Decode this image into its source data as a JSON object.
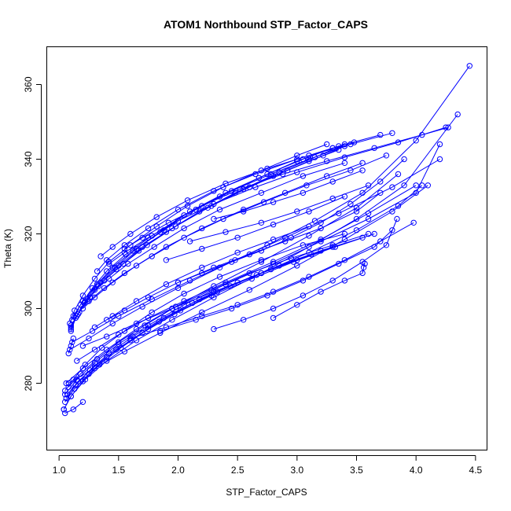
{
  "chart_data": {
    "type": "line",
    "title": "ATOM1 Northbound STP_Factor_CAPS",
    "xlabel": "STP_Factor_CAPS",
    "ylabel": "Theta (K)",
    "xlim": [
      0.9,
      4.6
    ],
    "ylim": [
      262,
      370
    ],
    "xticks": [
      1.0,
      1.5,
      2.0,
      2.5,
      3.0,
      3.5,
      4.0,
      4.5
    ],
    "xtick_labels": [
      "1.0",
      "1.5",
      "2.0",
      "2.5",
      "3.0",
      "3.5",
      "4.0",
      "4.5"
    ],
    "yticks": [
      280,
      300,
      320,
      340,
      360
    ],
    "ytick_labels": [
      "280",
      "300",
      "320",
      "340",
      "360"
    ],
    "grid": false,
    "color": "#0000ff",
    "series": [
      {
        "x": [
          1.1,
          1.15,
          1.22,
          1.32,
          1.45,
          1.62,
          1.85,
          2.1,
          2.4,
          2.75,
          3.05,
          3.3
        ],
        "y": [
          294.5,
          298,
          302,
          306.5,
          311,
          315.5,
          320.5,
          326,
          331,
          336,
          340,
          343
        ]
      },
      {
        "x": [
          1.09,
          1.13,
          1.2,
          1.3,
          1.42,
          1.6,
          1.82,
          2.08,
          2.38,
          2.7,
          3.0,
          3.25
        ],
        "y": [
          296,
          299.5,
          303.5,
          308,
          312.5,
          317,
          322,
          327.5,
          332.5,
          337,
          341,
          344
        ]
      },
      {
        "x": [
          1.1,
          1.16,
          1.24,
          1.35,
          1.5,
          1.7,
          1.95,
          2.25,
          2.55,
          2.85,
          3.15,
          3.4
        ],
        "y": [
          295,
          298.5,
          302.5,
          307,
          311.5,
          316.5,
          321.5,
          327,
          332,
          336.5,
          340.5,
          344
        ]
      },
      {
        "x": [
          1.11,
          1.18,
          1.28,
          1.4,
          1.56,
          1.78,
          2.05,
          2.35,
          2.68,
          3.0,
          3.3
        ],
        "y": [
          297,
          301,
          305.5,
          310,
          314.5,
          319.5,
          325,
          330,
          335,
          339.5,
          343
        ]
      },
      {
        "x": [
          1.1,
          1.14,
          1.21,
          1.33,
          1.48,
          1.67,
          1.9,
          2.18,
          2.48,
          2.8,
          3.1,
          3.35
        ],
        "y": [
          294,
          297.5,
          301.5,
          306,
          310.5,
          315.5,
          320.5,
          326,
          331,
          335.5,
          339.5,
          342.5
        ]
      },
      {
        "x": [
          1.12,
          1.2,
          1.32,
          1.47,
          1.65,
          1.88,
          2.15,
          2.45,
          2.78,
          3.1,
          3.4
        ],
        "y": [
          298,
          302,
          306.5,
          311,
          316,
          321,
          326.5,
          331.5,
          336,
          340,
          343.5
        ]
      },
      {
        "x": [
          1.1,
          1.17,
          1.26,
          1.38,
          1.54,
          1.74,
          1.98,
          2.28,
          2.6,
          2.92,
          3.22,
          3.48
        ],
        "y": [
          295.5,
          299,
          303,
          307.5,
          312,
          317,
          322,
          327.5,
          332.5,
          337,
          341,
          344.5
        ]
      },
      {
        "x": [
          1.32,
          1.4,
          1.55,
          1.75,
          2.0,
          2.3,
          2.65,
          3.0,
          3.35,
          3.7
        ],
        "y": [
          310,
          313,
          317,
          321.5,
          326.5,
          331.5,
          336,
          340,
          343.5,
          346.5
        ]
      },
      {
        "x": [
          1.35,
          1.45,
          1.6,
          1.82,
          2.08,
          2.4,
          2.75,
          3.1,
          3.45,
          3.8
        ],
        "y": [
          314,
          316.5,
          320,
          324.5,
          329,
          333.5,
          337.5,
          341,
          344,
          347
        ]
      },
      {
        "x": [
          1.42,
          1.55,
          1.75,
          2.0,
          2.3,
          2.65,
          3.0,
          3.4,
          3.85,
          4.25
        ],
        "y": [
          312,
          315,
          319,
          323.5,
          328,
          332.5,
          336.5,
          340.5,
          344.5,
          348.5
        ]
      },
      {
        "x": [
          1.55,
          1.7,
          1.92,
          2.2,
          2.52,
          2.88,
          3.25,
          3.65,
          4.05,
          4.27
        ],
        "y": [
          316,
          319,
          323,
          327.5,
          332,
          336,
          339.5,
          343,
          346.5,
          348.5
        ]
      },
      {
        "x": [
          1.3,
          1.42,
          1.58,
          1.8,
          2.05,
          2.35,
          2.7,
          3.05,
          3.4
        ],
        "y": [
          305,
          308,
          312,
          316.5,
          321.5,
          326.5,
          331,
          335.5,
          339
        ]
      },
      {
        "x": [
          1.2,
          1.3,
          1.45,
          1.65,
          1.9,
          2.2,
          2.55,
          2.9,
          3.25,
          3.55
        ],
        "y": [
          300,
          303,
          307,
          311.5,
          316.5,
          321.5,
          326.5,
          331,
          335.5,
          339
        ]
      },
      {
        "x": [
          1.25,
          1.38,
          1.55,
          1.78,
          2.05,
          2.38,
          2.72,
          3.08,
          3.45,
          3.75
        ],
        "y": [
          302,
          305.5,
          309.5,
          314,
          319,
          324,
          328.5,
          333,
          337,
          341
        ]
      },
      {
        "x": [
          1.05,
          1.12,
          1.22,
          1.36,
          1.55,
          1.78,
          2.05,
          2.35,
          2.7,
          3.05,
          3.4
        ],
        "y": [
          278,
          281,
          285,
          289.5,
          294,
          299,
          304,
          308.5,
          313,
          317,
          320
        ]
      },
      {
        "x": [
          1.06,
          1.14,
          1.26,
          1.42,
          1.62,
          1.88,
          2.18,
          2.5,
          2.85,
          3.2,
          3.55
        ],
        "y": [
          276,
          279.5,
          283.5,
          288,
          292.5,
          297.5,
          302.5,
          307,
          311.5,
          315.5,
          319
        ]
      },
      {
        "x": [
          1.04,
          1.1,
          1.2,
          1.34,
          1.52,
          1.75,
          2.02,
          2.33,
          2.66,
          3.0,
          3.3
        ],
        "y": [
          273,
          276.5,
          280.5,
          285,
          289.5,
          294.5,
          299.5,
          304.5,
          309,
          313,
          316.5
        ]
      },
      {
        "x": [
          1.07,
          1.16,
          1.3,
          1.48,
          1.7,
          1.97,
          2.28,
          2.62,
          2.97,
          3.32,
          3.65
        ],
        "y": [
          277,
          280.5,
          284.5,
          289,
          293.5,
          298.5,
          303.5,
          308,
          312.5,
          316.5,
          320
        ]
      },
      {
        "x": [
          1.05,
          1.13,
          1.25,
          1.4,
          1.6,
          1.84,
          2.12,
          2.44,
          2.78,
          3.12
        ],
        "y": [
          275,
          278.5,
          282.5,
          287,
          291.5,
          296.5,
          301.5,
          306,
          310.5,
          314.5
        ]
      },
      {
        "x": [
          1.08,
          1.18,
          1.32,
          1.5,
          1.72,
          1.98,
          2.28,
          2.6,
          2.95,
          3.3,
          3.6
        ],
        "y": [
          279,
          282.5,
          286.5,
          291,
          295.5,
          300.5,
          305,
          309.5,
          313.5,
          317,
          320
        ]
      },
      {
        "x": [
          1.05,
          1.15,
          1.3,
          1.5,
          1.75,
          2.05,
          2.4,
          2.8,
          3.2,
          3.6,
          4.0,
          4.2
        ],
        "y": [
          277,
          281,
          285.5,
          290.5,
          295.5,
          301,
          306.5,
          312,
          318,
          324,
          331,
          344
        ]
      },
      {
        "x": [
          1.04,
          1.1,
          1.22,
          1.4,
          1.65,
          1.95,
          2.3,
          2.7,
          3.1,
          3.5,
          3.9,
          4.35
        ],
        "y": [
          273,
          276.5,
          281,
          286,
          291.5,
          297,
          303,
          309.5,
          316.5,
          324,
          333,
          352
        ]
      },
      {
        "x": [
          1.06,
          1.2,
          1.4,
          1.65,
          1.95,
          2.3,
          2.7,
          3.1,
          3.5,
          3.85
        ],
        "y": [
          280,
          284,
          289,
          294.5,
          300,
          306,
          312.5,
          319.5,
          327,
          336
        ]
      },
      {
        "x": [
          1.15,
          1.3,
          1.5,
          1.75,
          2.05,
          2.4,
          2.8,
          3.2,
          3.6,
          4.0
        ],
        "y": [
          286,
          289,
          293,
          297.5,
          302,
          307,
          312.5,
          318.5,
          325.5,
          333
        ]
      },
      {
        "x": [
          1.08,
          1.3,
          1.55,
          1.85,
          2.2,
          2.6,
          3.0,
          3.4,
          3.8,
          4.1
        ],
        "y": [
          280,
          284,
          288.5,
          293.5,
          299,
          305,
          311.5,
          318.5,
          326,
          333
        ]
      },
      {
        "x": [
          1.2,
          1.4,
          1.65,
          1.95,
          2.3,
          2.7,
          3.1,
          3.5,
          3.85,
          4.05
        ],
        "y": [
          290,
          292.5,
          296,
          300,
          304.5,
          309.5,
          315,
          321,
          327.5,
          333
        ]
      },
      {
        "x": [
          1.6,
          1.9,
          2.2,
          2.5,
          2.8,
          3.1,
          3.4,
          3.7,
          3.98
        ],
        "y": [
          292,
          295,
          298,
          301,
          304.5,
          308.5,
          313,
          318,
          323
        ]
      },
      {
        "x": [
          1.85,
          2.15,
          2.45,
          2.75,
          3.05,
          3.35,
          3.65,
          3.8
        ],
        "y": [
          294,
          297,
          300,
          303.5,
          307.5,
          312,
          316.5,
          321
        ]
      },
      {
        "x": [
          2.3,
          2.55,
          2.8,
          3.05,
          3.3,
          3.55,
          3.75,
          3.84
        ],
        "y": [
          294.5,
          297,
          300,
          303.5,
          307.5,
          312.5,
          317,
          324
        ]
      },
      {
        "x": [
          2.8,
          3.0,
          3.2,
          3.4,
          3.55,
          3.56,
          3.57
        ],
        "y": [
          297.5,
          301,
          304.5,
          307.5,
          309.5,
          311,
          312
        ]
      },
      {
        "x": [
          1.4,
          1.55,
          1.75,
          2.0,
          2.3,
          2.6,
          2.9,
          3.2,
          3.5,
          3.7
        ],
        "y": [
          297,
          299.5,
          303,
          307,
          311,
          314.5,
          318,
          321.5,
          326,
          331
        ]
      },
      {
        "x": [
          1.3,
          1.45,
          1.65,
          1.9,
          2.2,
          2.5,
          2.8,
          3.1
        ],
        "y": [
          295,
          298,
          302,
          306.5,
          311,
          315,
          318.5,
          322
        ]
      },
      {
        "x": [
          2.0,
          2.2,
          2.45,
          2.7,
          2.95,
          3.2,
          3.45,
          3.7,
          3.9
        ],
        "y": [
          307,
          309.5,
          312.5,
          315.5,
          319,
          323,
          328,
          334,
          340
        ]
      },
      {
        "x": [
          1.09,
          1.25,
          1.45,
          1.7,
          2.0,
          2.35,
          2.75,
          3.15,
          3.55,
          4.0,
          4.45
        ],
        "y": [
          289,
          292,
          296,
          300.5,
          305.5,
          311,
          317,
          323.5,
          331,
          345,
          365
        ]
      },
      {
        "x": [
          1.11,
          1.28,
          1.5,
          1.78,
          2.1,
          2.48,
          2.9,
          3.35,
          3.8,
          4.2
        ],
        "y": [
          291,
          294,
          298,
          302.5,
          307.5,
          313,
          319,
          325.5,
          332.5,
          340
        ]
      },
      {
        "x": [
          2.1,
          2.4,
          2.7,
          3.0,
          3.3,
          3.6
        ],
        "y": [
          318,
          320.5,
          323,
          326,
          329.5,
          333
        ]
      },
      {
        "x": [
          2.3,
          2.55,
          2.8,
          3.05,
          3.3,
          3.55
        ],
        "y": [
          324,
          326,
          328.5,
          331,
          334,
          337
        ]
      },
      {
        "x": [
          1.9,
          2.2,
          2.5,
          2.8,
          3.1,
          3.4
        ],
        "y": [
          313,
          316,
          319,
          322.5,
          326,
          330
        ]
      },
      {
        "x": [
          1.05,
          1.12,
          1.2
        ],
        "y": [
          272,
          273,
          275
        ]
      },
      {
        "x": [
          1.08,
          1.1,
          1.12
        ],
        "y": [
          288,
          290,
          292
        ]
      }
    ]
  }
}
